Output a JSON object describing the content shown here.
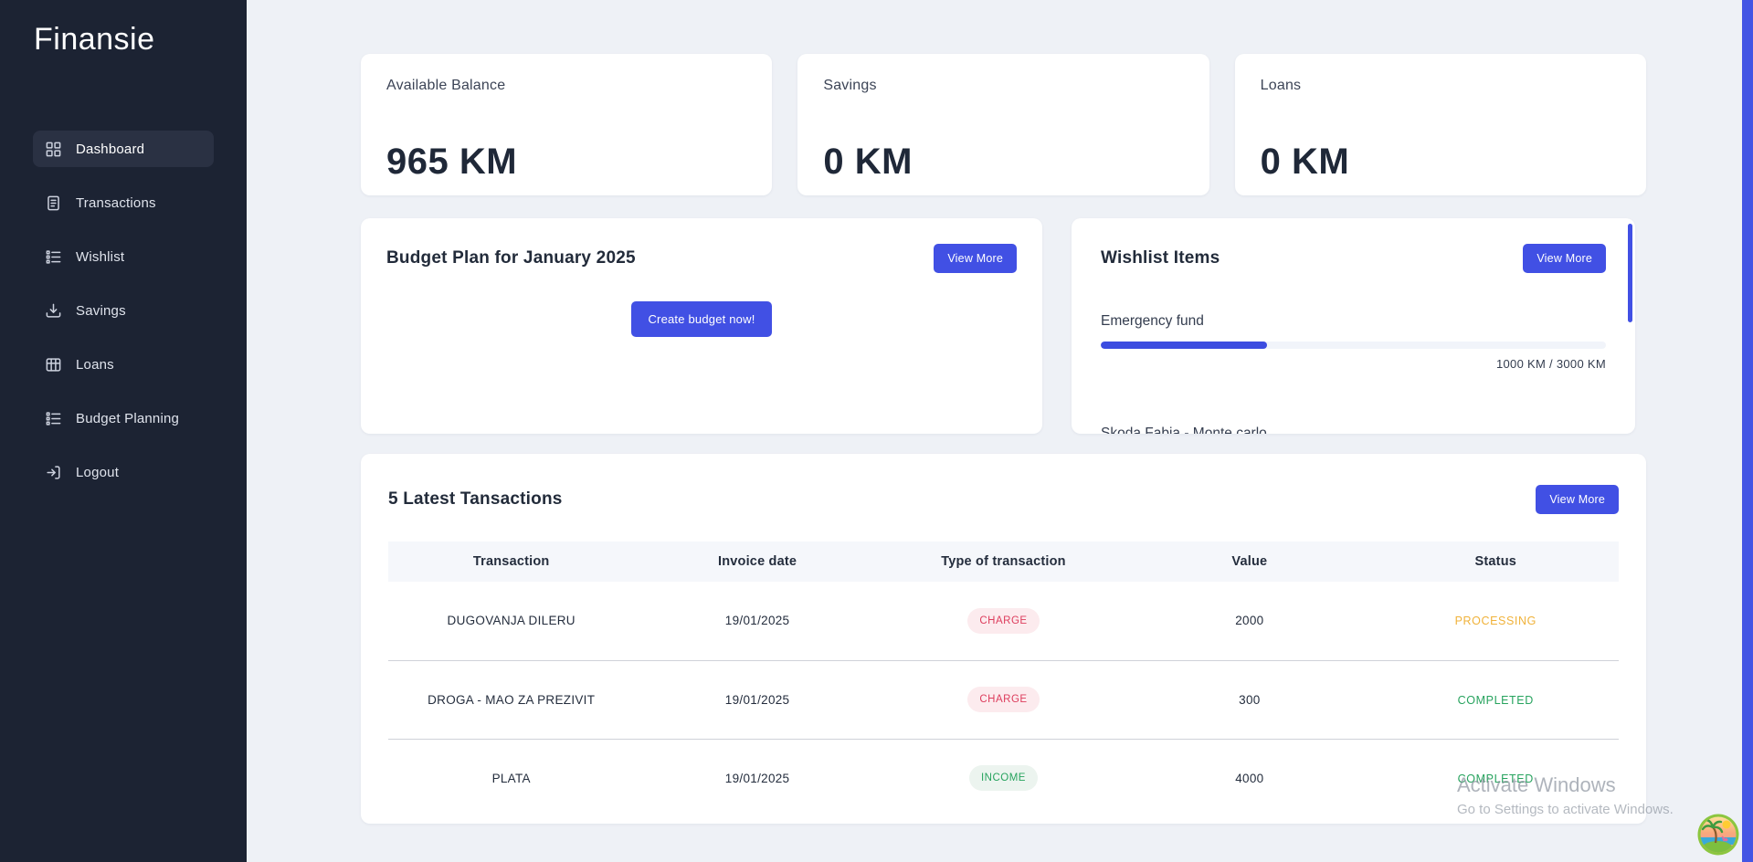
{
  "app": {
    "title": "Finansie"
  },
  "colors": {
    "accent": "#4150e4",
    "sidebar_bg": "#1c2333",
    "page_bg": "#eef1f6",
    "charge_text": "#dd3d5d",
    "charge_bg": "#fcebee",
    "income_text": "#27a35e",
    "income_bg": "#ecf4ef",
    "status_processing": "#f0b23a",
    "status_completed": "#27a35e"
  },
  "sidebar": {
    "items": [
      {
        "label": "Dashboard",
        "icon": "grid-icon",
        "active": true
      },
      {
        "label": "Transactions",
        "icon": "receipt-icon",
        "active": false
      },
      {
        "label": "Wishlist",
        "icon": "checklist-icon",
        "active": false
      },
      {
        "label": "Savings",
        "icon": "download-icon",
        "active": false
      },
      {
        "label": "Loans",
        "icon": "table-icon",
        "active": false
      },
      {
        "label": "Budget Planning",
        "icon": "checklist-icon",
        "active": false
      },
      {
        "label": "Logout",
        "icon": "logout-icon",
        "active": false
      }
    ]
  },
  "stat_cards": [
    {
      "label": "Available Balance",
      "value": "965 KM"
    },
    {
      "label": "Savings",
      "value": "0 KM"
    },
    {
      "label": "Loans",
      "value": "0 KM"
    }
  ],
  "budget_card": {
    "title": "Budget Plan for January 2025",
    "view_more_label": "View More",
    "create_button_label": "Create budget now!"
  },
  "wishlist_card": {
    "title": "Wishlist Items",
    "view_more_label": "View More",
    "items": [
      {
        "name": "Emergency fund",
        "progress_percent": 33,
        "progress_label": "1000 KM / 3000 KM"
      },
      {
        "name": "Skoda Fabia - Monte carlo"
      }
    ]
  },
  "transactions_card": {
    "title": "5 Latest Tansactions",
    "view_more_label": "View More",
    "columns": [
      "Transaction",
      "Invoice date",
      "Type of transaction",
      "Value",
      "Status"
    ],
    "rows": [
      {
        "transaction": "DUGOVANJA DILERU",
        "invoice_date": "19/01/2025",
        "type": "CHARGE",
        "value": "2000",
        "status": "PROCESSING"
      },
      {
        "transaction": "DROGA - MAO ZA PREZIVIT",
        "invoice_date": "19/01/2025",
        "type": "CHARGE",
        "value": "300",
        "status": "COMPLETED"
      },
      {
        "transaction": "PLATA",
        "invoice_date": "19/01/2025",
        "type": "INCOME",
        "value": "4000",
        "status": "COMPLETED"
      }
    ]
  },
  "watermark": {
    "line1": "Activate Windows",
    "line2": "Go to Settings to activate Windows."
  }
}
